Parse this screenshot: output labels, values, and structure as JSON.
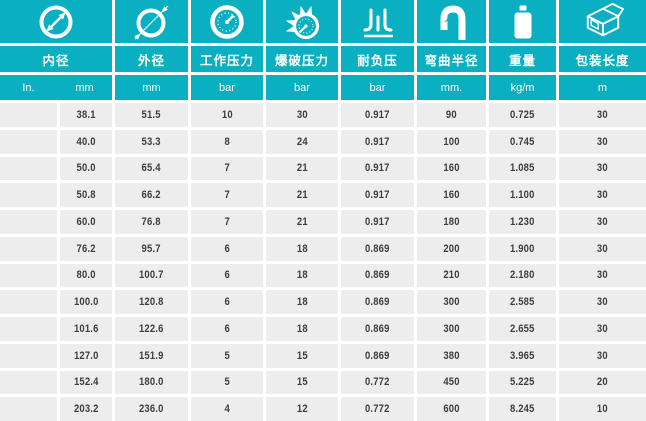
{
  "colors": {
    "header_teal": "#0ab0c1",
    "row_background": "#ededed",
    "data_text": "#3d3d3d",
    "header_text": "#ffffff"
  },
  "table": {
    "header": {
      "groups": [
        {
          "icon": "inner-diameter-icon",
          "label": "内径"
        },
        {
          "icon": "outer-diameter-icon",
          "label": "外径"
        },
        {
          "icon": "working-pressure-gauge-icon",
          "label": "工作压力"
        },
        {
          "icon": "burst-pressure-icon",
          "label": "爆破压力"
        },
        {
          "icon": "vacuum-resistance-icon",
          "label": "耐负压"
        },
        {
          "icon": "bend-radius-icon",
          "label": "弯曲半径"
        },
        {
          "icon": "weight-icon",
          "label": "重量"
        },
        {
          "icon": "package-length-box-icon",
          "label": "包装长度"
        }
      ],
      "units": [
        "In.",
        "mm",
        "mm",
        "bar",
        "bar",
        "bar",
        "mm.",
        "kg/m",
        "m"
      ]
    },
    "rows": [
      [
        "",
        "38.1",
        "51.5",
        "10",
        "30",
        "0.917",
        "90",
        "0.725",
        "30"
      ],
      [
        "",
        "40.0",
        "53.3",
        "8",
        "24",
        "0.917",
        "100",
        "0.745",
        "30"
      ],
      [
        "",
        "50.0",
        "65.4",
        "7",
        "21",
        "0.917",
        "160",
        "1.085",
        "30"
      ],
      [
        "",
        "50.8",
        "66.2",
        "7",
        "21",
        "0.917",
        "160",
        "1.100",
        "30"
      ],
      [
        "",
        "60.0",
        "76.8",
        "7",
        "21",
        "0.917",
        "180",
        "1.230",
        "30"
      ],
      [
        "",
        "76.2",
        "95.7",
        "6",
        "18",
        "0.869",
        "200",
        "1.900",
        "30"
      ],
      [
        "",
        "80.0",
        "100.7",
        "6",
        "18",
        "0.869",
        "210",
        "2.180",
        "30"
      ],
      [
        "",
        "100.0",
        "120.8",
        "6",
        "18",
        "0.869",
        "300",
        "2.585",
        "30"
      ],
      [
        "",
        "101.6",
        "122.6",
        "6",
        "18",
        "0.869",
        "300",
        "2.655",
        "30"
      ],
      [
        "",
        "127.0",
        "151.9",
        "5",
        "15",
        "0.869",
        "380",
        "3.965",
        "30"
      ],
      [
        "",
        "152.4",
        "180.0",
        "5",
        "15",
        "0.772",
        "450",
        "5.225",
        "20"
      ],
      [
        "",
        "203.2",
        "236.0",
        "4",
        "12",
        "0.772",
        "600",
        "8.245",
        "10"
      ]
    ]
  }
}
